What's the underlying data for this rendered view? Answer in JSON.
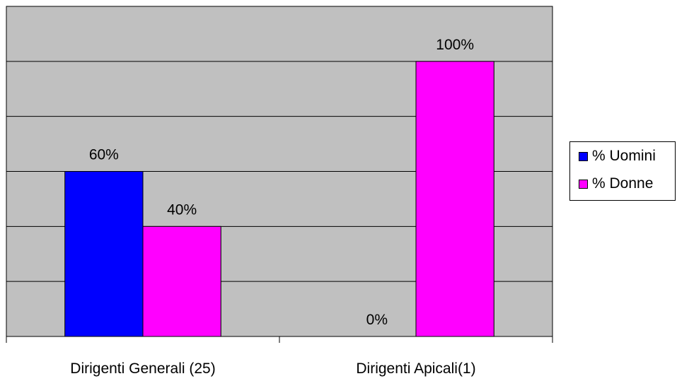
{
  "chart_data": {
    "type": "bar",
    "categories": [
      "Dirigenti Generali (25)",
      "Dirigenti Apicali(1)"
    ],
    "series": [
      {
        "name": "% Uomini",
        "values": [
          60,
          0
        ],
        "labels": [
          "60%",
          "0%"
        ],
        "color": "#0000ff"
      },
      {
        "name": "% Donne",
        "values": [
          40,
          100
        ],
        "labels": [
          "40%",
          "100%"
        ],
        "color": "#ff00ff"
      }
    ],
    "ylim": [
      0,
      120
    ],
    "ytick_step": 20,
    "grid": true,
    "plot_background": "#c0c0c0",
    "legend_placement": "right"
  }
}
